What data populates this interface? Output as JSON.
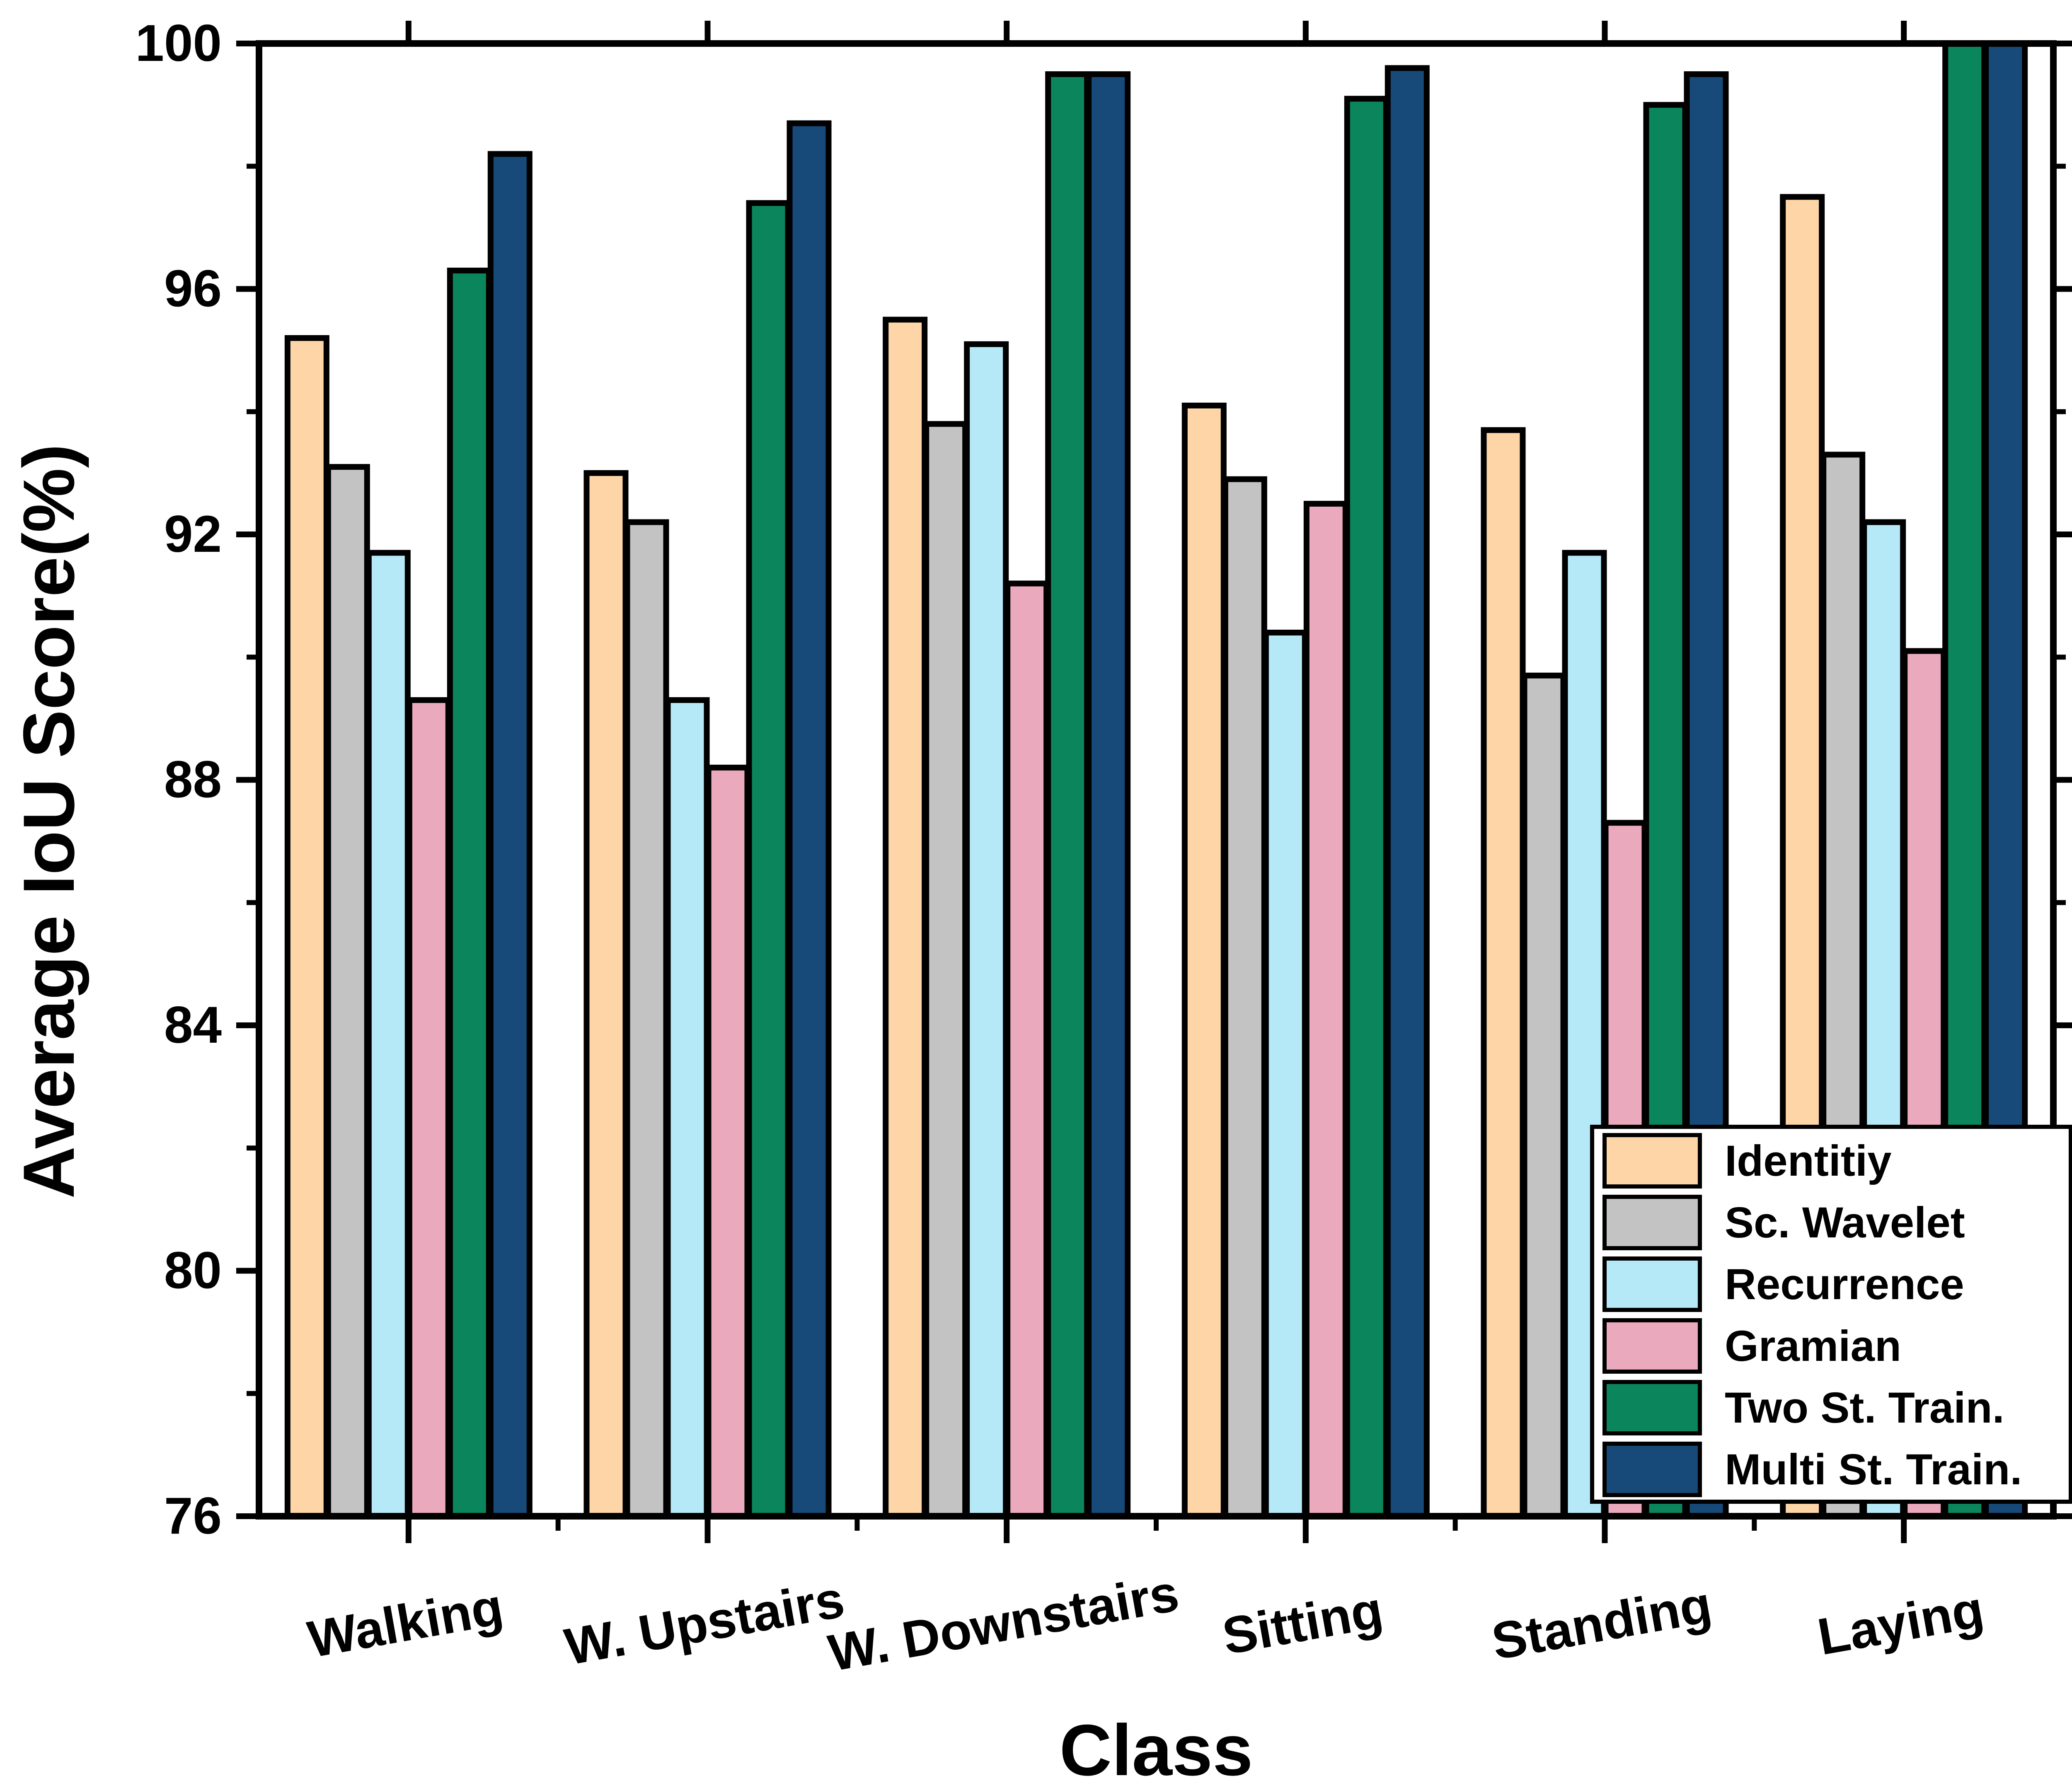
{
  "chart_data": {
    "type": "bar",
    "xlabel": "Class",
    "ylabel": "Average IoU Score(%)",
    "ylim": [
      76,
      100
    ],
    "yticks": [
      76,
      80,
      84,
      88,
      92,
      96,
      100
    ],
    "categories": [
      "Walking",
      "W. Upstairs",
      "W. Downstairs",
      "Sitting",
      "Standing",
      "Laying"
    ],
    "legend_position": "bottom-right",
    "grid": false,
    "series": [
      {
        "name": "Identitiy",
        "color": "#FDD5A6",
        "values": [
          95.2,
          93.0,
          95.5,
          94.1,
          93.7,
          97.5
        ]
      },
      {
        "name": "Sc. Wavelet",
        "color": "#C3C3C3",
        "values": [
          93.1,
          92.2,
          93.8,
          92.9,
          89.7,
          93.3
        ]
      },
      {
        "name": "Recurrence",
        "color": "#B6E9F8",
        "values": [
          91.7,
          89.3,
          95.1,
          90.4,
          91.7,
          92.2
        ]
      },
      {
        "name": "Gramian",
        "color": "#EAA9BD",
        "values": [
          89.3,
          88.2,
          91.2,
          92.5,
          87.3,
          90.1
        ]
      },
      {
        "name": "Two St. Train.",
        "color": "#0B865C",
        "values": [
          96.3,
          97.4,
          99.5,
          99.1,
          99.0,
          100.0
        ]
      },
      {
        "name": "Multi St. Train.",
        "color": "#174A78",
        "values": [
          98.2,
          98.7,
          99.5,
          99.6,
          99.5,
          100.0
        ]
      }
    ]
  }
}
